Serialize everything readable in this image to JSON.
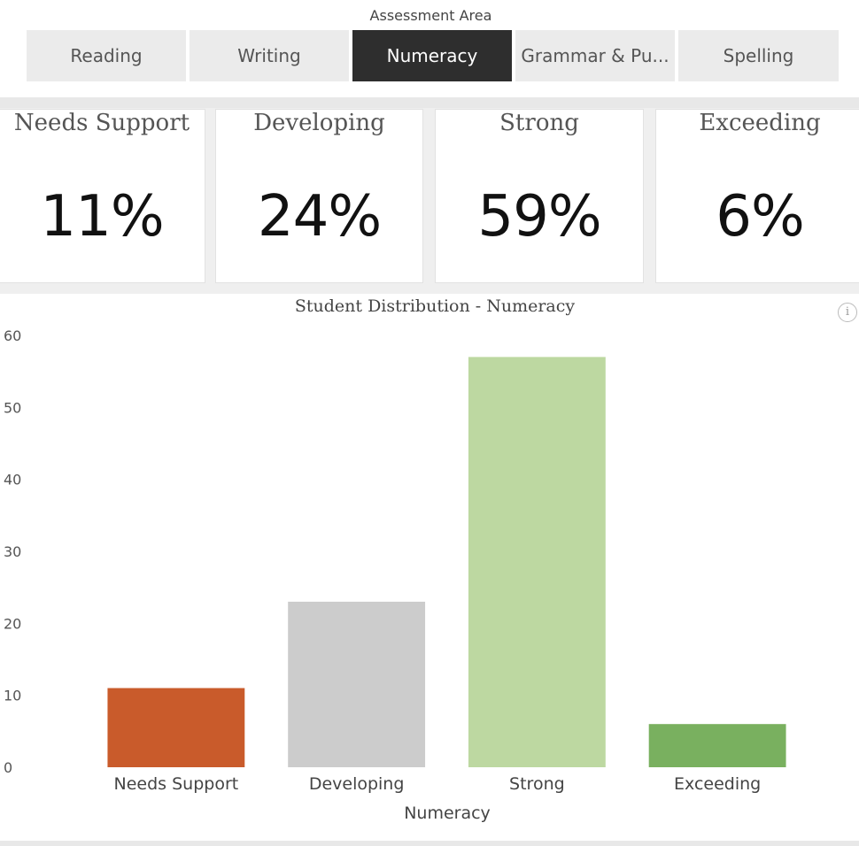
{
  "slicer": {
    "title": "Assessment Area",
    "tabs": [
      {
        "label": "Reading",
        "active": false
      },
      {
        "label": "Writing",
        "active": false
      },
      {
        "label": "Numeracy",
        "active": true
      },
      {
        "label": "Grammar & Pu...",
        "active": false
      },
      {
        "label": "Spelling",
        "active": false
      }
    ]
  },
  "cards": [
    {
      "title": "Needs Support",
      "value": "11%"
    },
    {
      "title": "Developing",
      "value": "24%"
    },
    {
      "title": "Strong",
      "value": "59%"
    },
    {
      "title": "Exceeding",
      "value": "6%"
    }
  ],
  "info_icon": "info-icon",
  "info_glyph": "i",
  "colors": {
    "active_tab": "#2e2e2e",
    "needs_support": "#c95b2b",
    "developing": "#cccccc",
    "strong": "#bdd8a1",
    "exceeding": "#79b05f"
  },
  "chart_data": {
    "type": "bar",
    "title": "Student Distribution - Numeracy",
    "xlabel": "Numeracy",
    "ylabel": "",
    "categories": [
      "Needs Support",
      "Developing",
      "Strong",
      "Exceeding"
    ],
    "values": [
      11,
      23,
      57,
      6
    ],
    "ylim": [
      0,
      60
    ],
    "yticks": [
      0,
      10,
      20,
      30,
      40,
      50,
      60
    ],
    "colors": [
      "#c95b2b",
      "#cccccc",
      "#bdd8a1",
      "#79b05f"
    ],
    "grid": false,
    "legend": "none"
  }
}
